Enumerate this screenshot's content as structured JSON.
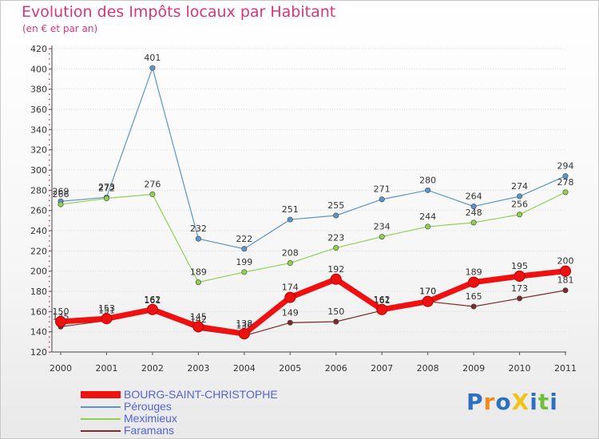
{
  "chart_data": {
    "type": "line",
    "title": "Evolution des Impôts locaux par Habitant",
    "subtitle": "(en € et par an)",
    "xlabel": "",
    "ylabel": "",
    "categories": [
      "2000",
      "2001",
      "2002",
      "2003",
      "2004",
      "2005",
      "2006",
      "2007",
      "2008",
      "2009",
      "2010",
      "2011"
    ],
    "ylim": [
      120,
      420
    ],
    "yticks": [
      120,
      140,
      160,
      180,
      200,
      220,
      240,
      260,
      280,
      300,
      320,
      340,
      360,
      380,
      400,
      420
    ],
    "grid": true,
    "series": [
      {
        "name": "Pérouges",
        "color": "#5b95c9",
        "values": [
          269,
          273,
          401,
          232,
          222,
          251,
          255,
          271,
          280,
          264,
          274,
          294
        ],
        "labels": [
          "269",
          "273",
          "401",
          "232",
          "222",
          "251",
          "255",
          "271",
          "280",
          "264",
          "274",
          "294"
        ]
      },
      {
        "name": "Meximieux",
        "color": "#8fd14f",
        "values": [
          266,
          272,
          276,
          189,
          199,
          208,
          223,
          234,
          244,
          248,
          256,
          278
        ],
        "labels": [
          "266",
          "272",
          "276",
          "189",
          "199",
          "208",
          "223",
          "234",
          "244",
          "248",
          "256",
          "278"
        ]
      },
      {
        "name": "Faramans",
        "color": "#7a2a2a",
        "values": [
          145,
          151,
          161,
          142,
          136,
          149,
          150,
          161,
          170,
          165,
          173,
          181
        ],
        "labels": [
          "145",
          "151",
          "161",
          "142",
          "136",
          "149",
          "150",
          "161",
          "170",
          "165",
          "173",
          "181"
        ]
      },
      {
        "name": "BOURG-SAINT-CHRISTOPHE",
        "color": "#ee1111",
        "values": [
          150,
          153,
          162,
          145,
          138,
          174,
          192,
          162,
          170,
          189,
          195,
          200
        ],
        "labels": [
          "150",
          "153",
          "162",
          "145",
          "138",
          "174",
          "192",
          "162",
          "170",
          "189",
          "195",
          "200"
        ]
      }
    ]
  },
  "legend": [
    {
      "label": "BOURG-SAINT-CHRISTOPHE",
      "color": "#ee1111"
    },
    {
      "label": "Pérouges",
      "color": "#5b95c9"
    },
    {
      "label": "Meximieux",
      "color": "#8fd14f"
    },
    {
      "label": "Faramans",
      "color": "#7a2a2a"
    }
  ],
  "logo": {
    "text": "ProXiti",
    "letters": [
      "P",
      "r",
      "o",
      "X",
      "i",
      "t",
      "i"
    ],
    "colors": [
      "#2f6fbf",
      "#f08a1c",
      "#2f6fbf",
      "#f2c21a",
      "#2f6fbf",
      "#6fbf3a",
      "#2f6fbf"
    ]
  }
}
